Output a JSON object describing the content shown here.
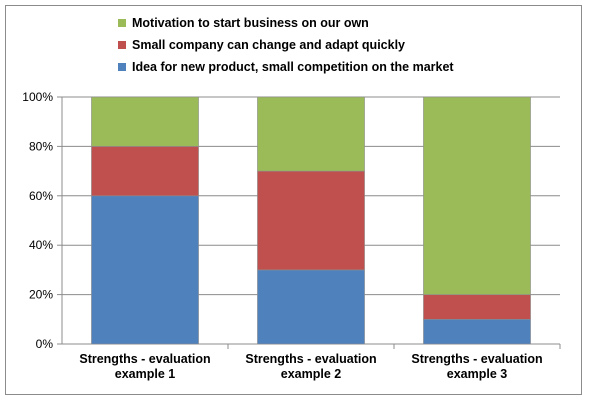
{
  "chart_data": {
    "type": "bar",
    "stacked": true,
    "percent": true,
    "categories": [
      [
        "Strengths  - evaluation",
        "example 1"
      ],
      [
        "Strengths  - evaluation",
        "example 2"
      ],
      [
        "Strengths  - evaluation",
        "example 3"
      ]
    ],
    "series": [
      {
        "name": "Idea for new product, small competition on the market",
        "color": "#4f81bd",
        "values": [
          60,
          30,
          10
        ]
      },
      {
        "name": "Small company can change and adapt quickly",
        "color": "#c0504d",
        "values": [
          20,
          40,
          10
        ]
      },
      {
        "name": "Motivation to start business on our own",
        "color": "#9bbb59",
        "values": [
          20,
          30,
          80
        ]
      }
    ],
    "legend_order": [
      2,
      1,
      0
    ],
    "legend_position": "top",
    "ylim": [
      0,
      100
    ],
    "yticks": [
      0,
      20,
      40,
      60,
      80,
      100
    ],
    "ytick_labels": [
      "0%",
      "20%",
      "40%",
      "60%",
      "80%",
      "100%"
    ],
    "grid": true,
    "title": "",
    "xlabel": "",
    "ylabel": ""
  }
}
